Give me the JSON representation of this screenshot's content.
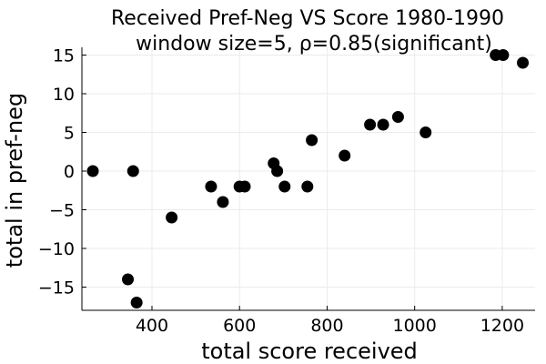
{
  "chart_data": {
    "type": "scatter",
    "title": "Received Pref-Neg VS Score 1980-1990",
    "subtitle": "window size=5, ρ=0.85(significant)",
    "xlabel": "total score received",
    "ylabel": "total in pref-neg",
    "xlim": [
      240,
      1275
    ],
    "ylim": [
      -18,
      16
    ],
    "xticks": [
      400,
      600,
      800,
      1000,
      1200
    ],
    "yticks": [
      15,
      10,
      5,
      0,
      -5,
      -10,
      -15
    ],
    "ytick_labels": [
      "15",
      "10",
      "5",
      "0",
      "−5",
      "−10",
      "−15"
    ],
    "grid": true,
    "legend": false,
    "marker_color": "#000000",
    "x": [
      265,
      345,
      357,
      365,
      445,
      535,
      562,
      600,
      612,
      678,
      686,
      703,
      755,
      765,
      840,
      898,
      928,
      962,
      1025,
      1185,
      1202,
      1247
    ],
    "y": [
      0,
      -14,
      0,
      -17,
      -6,
      -2,
      -4,
      -2,
      -2,
      1,
      0,
      -2,
      -2,
      4,
      2,
      6,
      6,
      7,
      5,
      15,
      15,
      14
    ]
  }
}
